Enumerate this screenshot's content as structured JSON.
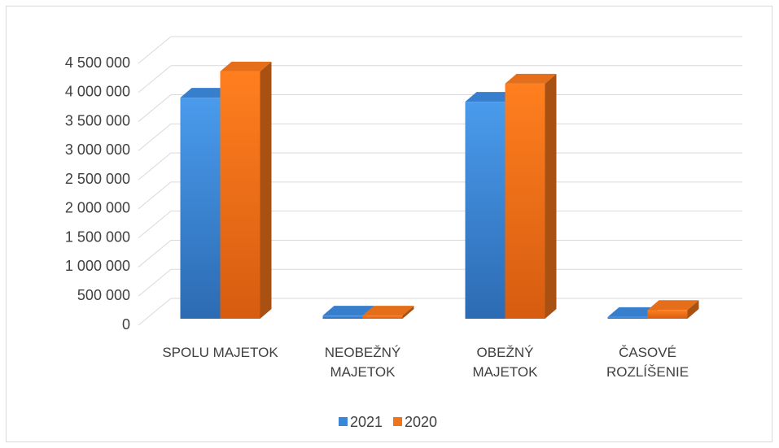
{
  "chart_data": {
    "type": "bar3d",
    "categories": [
      "SPOLU MAJETOK",
      "NEOBEŽNÝ MAJETOK",
      "OBEŽNÝ MAJETOK",
      "ČASOVÉ ROZLÍŠENIE"
    ],
    "series": [
      {
        "name": "2021",
        "color": "#3a86d8",
        "values": [
          3800000,
          55000,
          3730000,
          30000
        ]
      },
      {
        "name": "2020",
        "color": "#f0741a",
        "values": [
          4250000,
          55000,
          4040000,
          150000
        ]
      }
    ],
    "ylim": [
      0,
      4500000
    ],
    "yticks": [
      0,
      {
        "value": 500000,
        "label": "500 000"
      },
      {
        "value": 1000000,
        "label": "1 000 000"
      },
      {
        "value": 1500000,
        "label": "1 500 000"
      },
      {
        "value": 2000000,
        "label": "2 000 000"
      },
      {
        "value": 2500000,
        "label": "2 500 000"
      },
      {
        "value": 3000000,
        "label": "3 000 000"
      },
      {
        "value": 3500000,
        "label": "3 500 000"
      },
      {
        "value": 4000000,
        "label": "4 000 000"
      },
      {
        "value": 4500000,
        "label": "4 500 000"
      }
    ],
    "grid": true,
    "legend": "bottom"
  }
}
